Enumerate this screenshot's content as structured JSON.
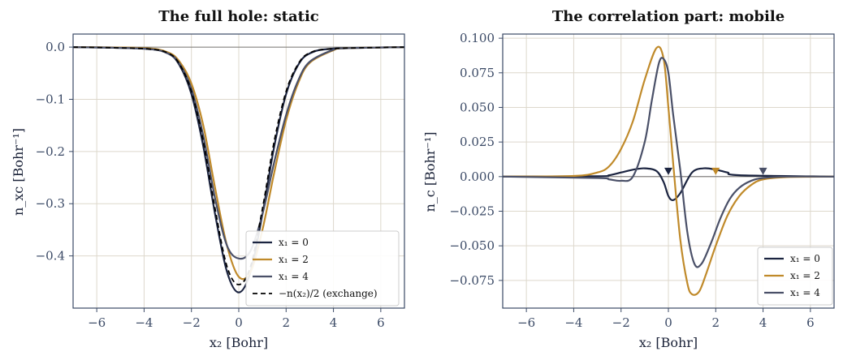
{
  "chart_data": [
    {
      "type": "line",
      "title": "The full hole: static",
      "xlabel": "x₂  [Bohr]",
      "ylabel": "n_xc  [Bohr⁻¹]",
      "xlim": [
        -7,
        7
      ],
      "ylim": [
        -0.5,
        0.025
      ],
      "xticks": [
        -6,
        -4,
        -2,
        0,
        2,
        4,
        6
      ],
      "xtick_labels": [
        "−6",
        "−4",
        "−2",
        "0",
        "2",
        "4",
        "6"
      ],
      "yticks": [
        0.0,
        -0.1,
        -0.2,
        -0.3,
        -0.4
      ],
      "ytick_labels": [
        "0.0",
        "−0.1",
        "−0.2",
        "−0.3",
        "−0.4"
      ],
      "grid": true,
      "legend": "lower-right",
      "series": [
        {
          "name": "x₁ = 0",
          "color": "#1b2440",
          "dash": false,
          "x": [
            -7,
            -4,
            -3,
            -2.5,
            -2,
            -1.5,
            -1,
            -0.5,
            0,
            0.5,
            1,
            1.5,
            2,
            2.5,
            3,
            4,
            7
          ],
          "y": [
            0,
            -0.003,
            -0.012,
            -0.035,
            -0.09,
            -0.19,
            -0.32,
            -0.43,
            -0.47,
            -0.43,
            -0.32,
            -0.19,
            -0.09,
            -0.035,
            -0.012,
            -0.003,
            0
          ]
        },
        {
          "name": "x₁ = 2",
          "color": "#c08a2a",
          "dash": false,
          "x": [
            -7,
            -4,
            -3,
            -2.5,
            -2,
            -1.5,
            -1,
            -0.5,
            0,
            0.5,
            1,
            1.5,
            2,
            2.5,
            3,
            4,
            4.5,
            7
          ],
          "y": [
            0,
            -0.002,
            -0.01,
            -0.028,
            -0.07,
            -0.15,
            -0.27,
            -0.38,
            -0.44,
            -0.43,
            -0.35,
            -0.24,
            -0.14,
            -0.07,
            -0.03,
            -0.006,
            -0.002,
            0
          ]
        },
        {
          "name": "x₁ = 4",
          "color": "#4a5068",
          "dash": false,
          "x": [
            -7,
            -4,
            -3,
            -2.5,
            -2,
            -1.5,
            -1,
            -0.5,
            0,
            0.5,
            1,
            1.5,
            2,
            2.5,
            3,
            4,
            4.5,
            7
          ],
          "y": [
            0,
            -0.003,
            -0.012,
            -0.032,
            -0.08,
            -0.17,
            -0.29,
            -0.38,
            -0.405,
            -0.39,
            -0.32,
            -0.22,
            -0.13,
            -0.065,
            -0.028,
            -0.005,
            -0.002,
            0
          ]
        },
        {
          "name": "−n(x₂)/2 (exchange)",
          "color": "#000000",
          "dash": true,
          "x": [
            -7,
            -4,
            -3,
            -2.5,
            -2,
            -1.5,
            -1,
            -0.5,
            0,
            0.5,
            1,
            1.5,
            2,
            2.5,
            3,
            4,
            7
          ],
          "y": [
            0,
            -0.003,
            -0.011,
            -0.033,
            -0.085,
            -0.18,
            -0.31,
            -0.42,
            -0.455,
            -0.42,
            -0.31,
            -0.18,
            -0.085,
            -0.033,
            -0.011,
            -0.003,
            0
          ]
        }
      ]
    },
    {
      "type": "line",
      "title": "The correlation part: mobile",
      "xlabel": "x₂  [Bohr]",
      "ylabel": "n_c  [Bohr⁻¹]",
      "xlim": [
        -7,
        7
      ],
      "ylim": [
        -0.095,
        0.103
      ],
      "xticks": [
        -6,
        -4,
        -2,
        0,
        2,
        4,
        6
      ],
      "xtick_labels": [
        "−6",
        "−4",
        "−2",
        "0",
        "2",
        "4",
        "6"
      ],
      "yticks": [
        0.1,
        0.075,
        0.05,
        0.025,
        0.0,
        -0.025,
        -0.05,
        -0.075
      ],
      "ytick_labels": [
        "0.100",
        "0.075",
        "0.050",
        "0.025",
        "0.000",
        "−0.025",
        "−0.050",
        "−0.075"
      ],
      "grid": true,
      "legend": "lower-right",
      "markers": [
        {
          "x": 0,
          "y": 0.0035,
          "color": "#1b2440"
        },
        {
          "x": 2,
          "y": 0.0035,
          "color": "#c08a2a"
        },
        {
          "x": 4,
          "y": 0.0035,
          "color": "#4a5068"
        }
      ],
      "series": [
        {
          "name": "x₁ = 0",
          "color": "#1b2440",
          "x": [
            -7,
            -3,
            -2.5,
            -2,
            -1.5,
            -1,
            -0.5,
            -0.2,
            0,
            0.2,
            0.5,
            1,
            1.5,
            2,
            2.5,
            3,
            7
          ],
          "y": [
            0,
            0.0003,
            0.001,
            0.003,
            0.005,
            0.006,
            0.004,
            -0.004,
            -0.014,
            -0.017,
            -0.012,
            0.003,
            0.006,
            0.005,
            0.003,
            0.001,
            0
          ]
        },
        {
          "name": "x₁ = 2",
          "color": "#c08a2a",
          "x": [
            -7,
            -4,
            -3,
            -2.5,
            -2,
            -1.5,
            -1,
            -0.5,
            -0.2,
            0,
            0.2,
            0.5,
            0.8,
            1,
            1.3,
            1.6,
            2,
            2.5,
            3,
            3.5,
            4,
            5,
            7
          ],
          "y": [
            0,
            0.0005,
            0.003,
            0.0075,
            0.02,
            0.04,
            0.07,
            0.093,
            0.085,
            0.05,
            0.01,
            -0.045,
            -0.077,
            -0.085,
            -0.083,
            -0.07,
            -0.05,
            -0.028,
            -0.014,
            -0.006,
            -0.002,
            -0.0003,
            0
          ]
        },
        {
          "name": "x₁ = 4",
          "color": "#4a5068",
          "x": [
            -7,
            -3,
            -2.5,
            -2,
            -1.5,
            -1,
            -0.7,
            -0.4,
            -0.2,
            0,
            0.2,
            0.5,
            0.8,
            1.1,
            1.4,
            1.8,
            2.2,
            2.6,
            3,
            3.5,
            4,
            5,
            7
          ],
          "y": [
            0,
            -0.001,
            -0.002,
            -0.003,
            0,
            0.025,
            0.055,
            0.082,
            0.085,
            0.075,
            0.045,
            0.005,
            -0.04,
            -0.063,
            -0.063,
            -0.048,
            -0.03,
            -0.016,
            -0.008,
            -0.003,
            -0.001,
            0,
            0
          ]
        }
      ]
    }
  ]
}
